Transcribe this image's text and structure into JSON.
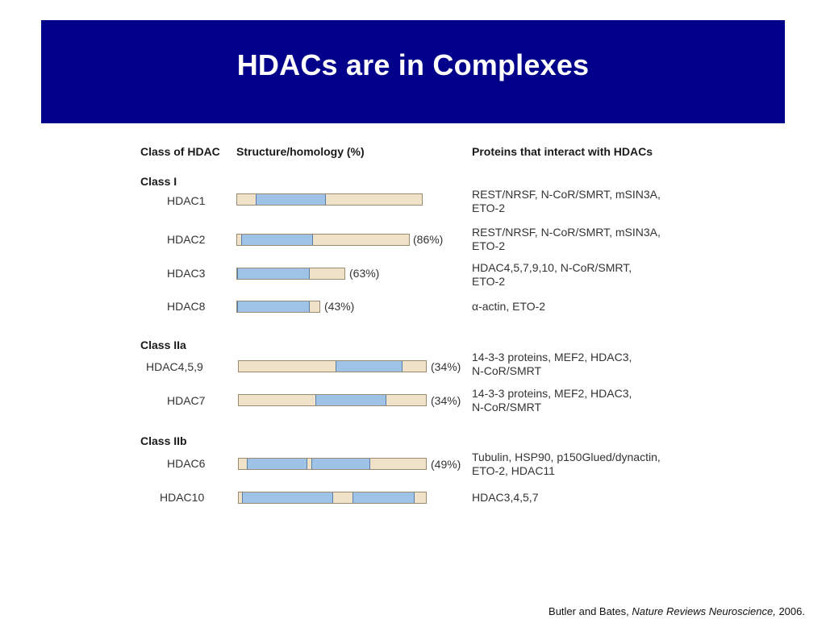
{
  "slide": {
    "title": "HDACs are in Complexes",
    "colors": {
      "banner": "#00008b",
      "bar_domain": "#9ec3e6",
      "bar_body": "#f0e2c8"
    }
  },
  "table": {
    "headers": {
      "class": "Class of HDAC",
      "structure": "Structure/homology (%)",
      "proteins": "Proteins that interact with HDACs"
    },
    "groups": [
      {
        "label": "Class I",
        "rows": [
          {
            "name": "HDAC1",
            "homology": "",
            "proteins": [
              "REST/NRSF, N-CoR/SMRT, mSIN3A,",
              "ETO-2"
            ]
          },
          {
            "name": "HDAC2",
            "homology": "(86%)",
            "proteins": [
              "REST/NRSF, N-CoR/SMRT, mSIN3A,",
              "ETO-2"
            ]
          },
          {
            "name": "HDAC3",
            "homology": "(63%)",
            "proteins": [
              "HDAC4,5,7,9,10, N-CoR/SMRT,",
              "ETO-2"
            ]
          },
          {
            "name": "HDAC8",
            "homology": "(43%)",
            "proteins": [
              "α-actin, ETO-2"
            ]
          }
        ]
      },
      {
        "label": "Class IIa",
        "rows": [
          {
            "name": "HDAC4,5,9",
            "homology": "(34%)",
            "proteins": [
              "14-3-3 proteins, MEF2, HDAC3,",
              "N-CoR/SMRT"
            ]
          },
          {
            "name": "HDAC7",
            "homology": "(34%)",
            "proteins": [
              "14-3-3 proteins, MEF2, HDAC3,",
              "N-CoR/SMRT"
            ]
          }
        ]
      },
      {
        "label": "Class IIb",
        "rows": [
          {
            "name": "HDAC6",
            "homology": "(49%)",
            "proteins": [
              "Tubulin, HSP90, p150Glued/dynactin,",
              "ETO-2, HDAC11"
            ]
          },
          {
            "name": "HDAC10",
            "homology": "",
            "proteins": [
              "HDAC3,4,5,7"
            ]
          }
        ]
      }
    ]
  },
  "footer": {
    "authors": "Butler and Bates, ",
    "journal": "Nature Reviews Neuroscience,",
    "year": " 2006."
  }
}
